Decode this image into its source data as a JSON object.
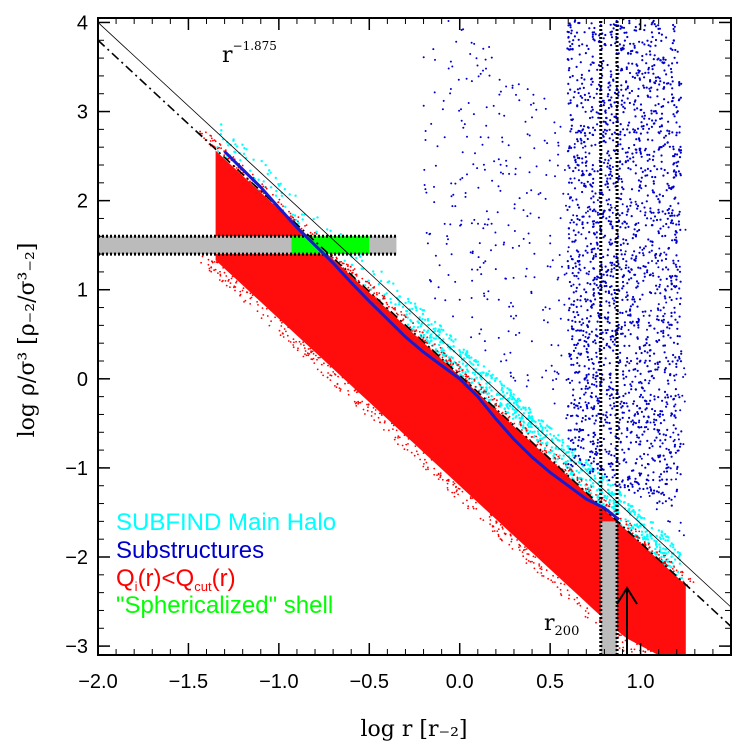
{
  "chart_data": {
    "type": "scatter",
    "xlabel": "log r [r₋₂]",
    "ylabel": "log ρ/σ³ [ρ₋₂/σ³₋₂]",
    "xlim": [
      -2.0,
      1.5
    ],
    "ylim": [
      -3.1,
      4.05
    ],
    "x_ticks": [
      -2.0,
      -1.5,
      -1.0,
      -0.5,
      0.0,
      0.5,
      1.0
    ],
    "x_tick_labels": [
      "−2.0",
      "−1.5",
      "−1.0",
      "−0.5",
      "0.0",
      "0.5",
      "1.0"
    ],
    "y_ticks": [
      -3,
      -2,
      -1,
      0,
      1,
      2,
      3,
      4
    ],
    "y_tick_labels": [
      "−3",
      "−2",
      "−1",
      "0",
      "1",
      "2",
      "3",
      "4"
    ],
    "power_law": {
      "label_base": "r",
      "label_exp": "−1.875",
      "slope": -1.875,
      "intercept": 0.25,
      "color": "#000000"
    },
    "dashdot_fit": {
      "x": [
        -2.0,
        1.5
      ],
      "y": [
        3.8,
        -2.78
      ],
      "color": "#000000"
    },
    "median_profile": {
      "name": "median",
      "color": "#1a1acc",
      "x": [
        -1.3,
        -1.2,
        -1.1,
        -1.0,
        -0.9,
        -0.8,
        -0.7,
        -0.6,
        -0.5,
        -0.4,
        -0.3,
        -0.2,
        -0.1,
        0.0,
        0.1,
        0.2,
        0.3,
        0.4,
        0.5,
        0.6,
        0.7,
        0.8,
        0.88
      ],
      "y": [
        2.55,
        2.35,
        2.15,
        1.92,
        1.7,
        1.5,
        1.3,
        1.08,
        0.87,
        0.67,
        0.47,
        0.3,
        0.15,
        0.0,
        -0.2,
        -0.45,
        -0.68,
        -0.88,
        -1.05,
        -1.2,
        -1.35,
        -1.45,
        -1.58
      ]
    },
    "shell_band": {
      "y_range": [
        1.4,
        1.6
      ],
      "x_range": [
        -2.0,
        -0.35
      ],
      "green_x_range": [
        -0.93,
        -0.5
      ]
    },
    "r200_band": {
      "x_range": [
        0.78,
        0.87
      ],
      "y_range": [
        -3.1,
        4.05
      ],
      "label_base": "r",
      "label_sub": "200"
    },
    "series": [
      {
        "name": "SUBFIND Main Halo",
        "color": "#00ffff"
      },
      {
        "name": "Substructures",
        "color": "#0000cc"
      },
      {
        "name": "Qi(r)<Qcut(r)",
        "color": "#ff0000"
      },
      {
        "name": "\"Sphericalized\" shell",
        "color": "#00ff00"
      }
    ]
  },
  "legend": {
    "line1a": "SUBFIND",
    "line1b": "Main Halo",
    "line2": "Substructures",
    "line3_Q1": "Q",
    "line3_sub1": "i",
    "line3_mid": "(r)<Q",
    "line3_sub2": "cut",
    "line3_end": "(r)",
    "line4": "\"Sphericalized\" shell"
  }
}
